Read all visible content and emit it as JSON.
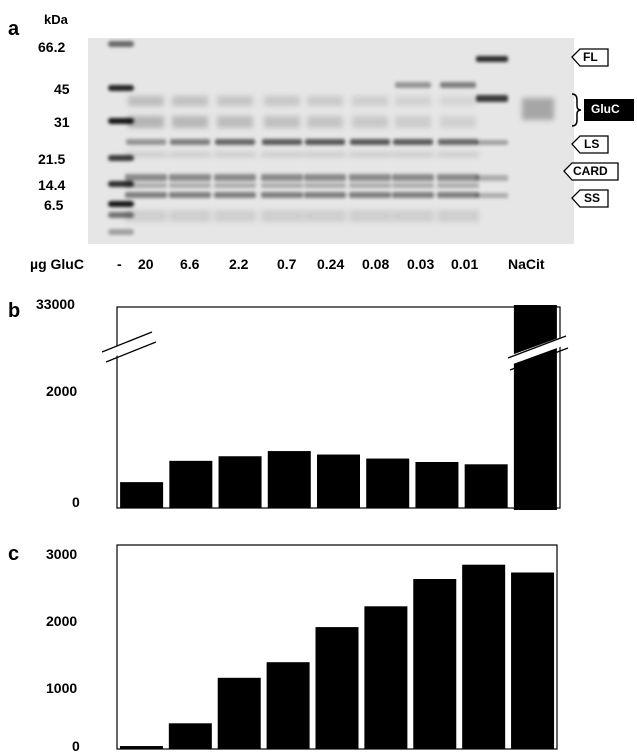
{
  "panel_a": {
    "letter": "a",
    "mw_unit": "kDa",
    "mw_markers": [
      "66.2",
      "45",
      "31",
      "21.5",
      "14.4",
      "6.5"
    ],
    "lane_axis_label": "µg GluC",
    "lane_labels": [
      "-",
      "20",
      "6.6",
      "2.2",
      "0.7",
      "0.24",
      "0.08",
      "0.03",
      "0.01",
      "NaCit"
    ],
    "band_tags": [
      "FL",
      "GluC",
      "LS",
      "CARD",
      "SS"
    ]
  },
  "chart_data": [
    {
      "type": "bar",
      "panel": "b",
      "categories": [
        "20",
        "6.6",
        "2.2",
        "0.7",
        "0.24",
        "0.08",
        "0.03",
        "0.01",
        "NaCit"
      ],
      "values": [
        450,
        820,
        900,
        990,
        930,
        860,
        800,
        760,
        33000
      ],
      "title": "",
      "xlabel": "",
      "ylabel": "",
      "yticks": [
        "33000",
        "2000",
        "0"
      ],
      "axis_break": true,
      "ylim": [
        0,
        33000
      ],
      "colors": {
        "bar": "#000000",
        "frame": "#000000"
      }
    },
    {
      "type": "bar",
      "panel": "c",
      "categories": [
        "20",
        "6.6",
        "2.2",
        "0.7",
        "0.24",
        "0.08",
        "0.03",
        "0.01",
        "NaCit"
      ],
      "values": [
        30,
        380,
        1080,
        1320,
        1860,
        2180,
        2600,
        2820,
        2700
      ],
      "title": "",
      "xlabel": "",
      "ylabel": "",
      "yticks": [
        "3000",
        "2000",
        "1000",
        "0"
      ],
      "ylim": [
        0,
        3000
      ],
      "colors": {
        "bar": "#000000",
        "frame": "#000000"
      }
    }
  ]
}
